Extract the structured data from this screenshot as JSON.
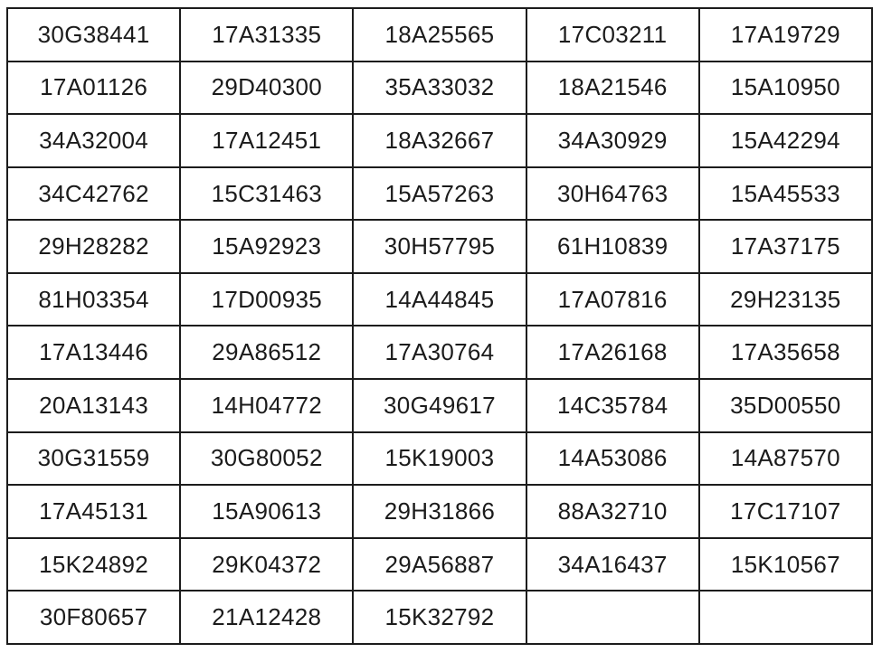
{
  "document": {
    "background_color": "#ffffff",
    "border_color": "#1c1c1c",
    "text_color": "#1b1b1b"
  },
  "table": {
    "columns": 5,
    "row_count": 12,
    "rows": [
      [
        "30G38441",
        "17A31335",
        "18A25565",
        "17C03211",
        "17A19729"
      ],
      [
        "17A01126",
        "29D40300",
        "35A33032",
        "18A21546",
        "15A10950"
      ],
      [
        "34A32004",
        "17A12451",
        "18A32667",
        "34A30929",
        "15A42294"
      ],
      [
        "34C42762",
        "15C31463",
        "15A57263",
        "30H64763",
        "15A45533"
      ],
      [
        "29H28282",
        "15A92923",
        "30H57795",
        "61H10839",
        "17A37175"
      ],
      [
        "81H03354",
        "17D00935",
        "14A44845",
        "17A07816",
        "29H23135"
      ],
      [
        "17A13446",
        "29A86512",
        "17A30764",
        "17A26168",
        "17A35658"
      ],
      [
        "20A13143",
        "14H04772",
        "30G49617",
        "14C35784",
        "35D00550"
      ],
      [
        "30G31559",
        "30G80052",
        "15K19003",
        "14A53086",
        "14A87570"
      ],
      [
        "17A45131",
        "15A90613",
        "29H31866",
        "88A32710",
        "17C17107"
      ],
      [
        "15K24892",
        "29K04372",
        "29A56887",
        "34A16437",
        "15K10567"
      ],
      [
        "30F80657",
        "21A12428",
        "15K32792",
        "",
        ""
      ]
    ]
  }
}
